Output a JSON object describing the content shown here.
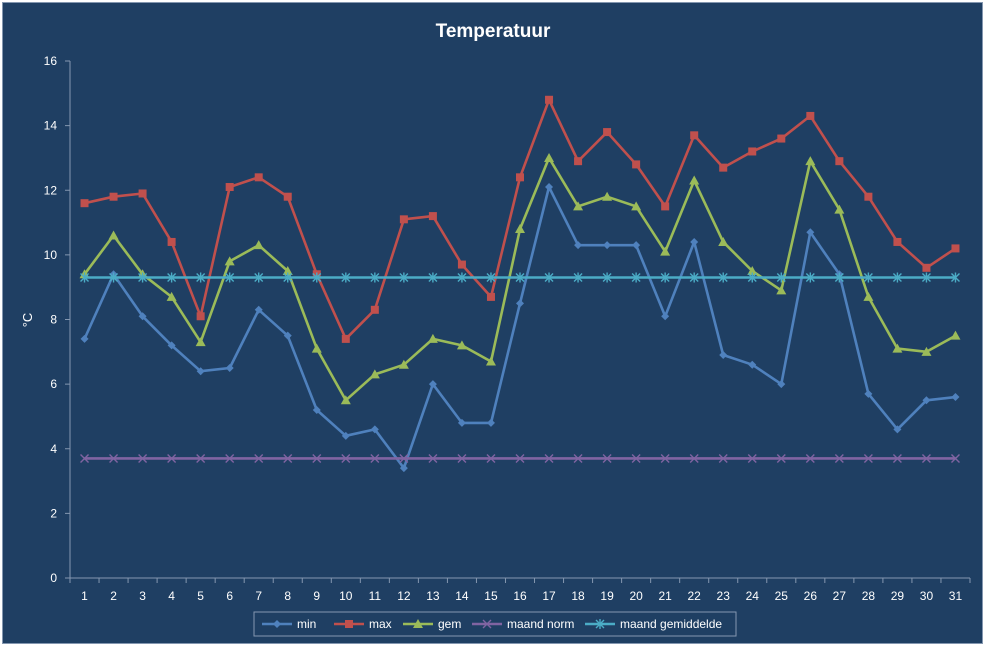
{
  "chart_data": {
    "type": "line",
    "title": "Temperatuur",
    "xlabel": "",
    "ylabel": "°C",
    "ylim": [
      0,
      16
    ],
    "yticks": [
      0,
      2,
      4,
      6,
      8,
      10,
      12,
      14,
      16
    ],
    "categories": [
      "1",
      "2",
      "3",
      "4",
      "5",
      "6",
      "7",
      "8",
      "9",
      "10",
      "11",
      "12",
      "13",
      "14",
      "15",
      "16",
      "17",
      "18",
      "19",
      "20",
      "21",
      "22",
      "23",
      "24",
      "25",
      "26",
      "27",
      "28",
      "29",
      "30",
      "31"
    ],
    "grid": false,
    "legend_position": "bottom",
    "series": [
      {
        "name": "min",
        "color": "#4f81bd",
        "marker": "diamond",
        "values": [
          7.4,
          9.4,
          8.1,
          7.2,
          6.4,
          6.5,
          8.3,
          7.5,
          5.2,
          4.4,
          4.6,
          3.4,
          6.0,
          4.8,
          4.8,
          8.5,
          12.1,
          10.3,
          10.3,
          10.3,
          8.1,
          10.4,
          6.9,
          6.6,
          6.0,
          10.7,
          9.4,
          5.7,
          4.6,
          5.5,
          5.6
        ]
      },
      {
        "name": "max",
        "color": "#c0504d",
        "marker": "square",
        "values": [
          11.6,
          11.8,
          11.9,
          10.4,
          8.1,
          12.1,
          12.4,
          11.8,
          9.4,
          7.4,
          8.3,
          11.1,
          11.2,
          9.7,
          8.7,
          12.4,
          14.8,
          12.9,
          13.8,
          12.8,
          11.5,
          13.7,
          12.7,
          13.2,
          13.6,
          14.3,
          12.9,
          11.8,
          10.4,
          9.6,
          10.2
        ]
      },
      {
        "name": "gem",
        "color": "#9bbb59",
        "marker": "triangle",
        "values": [
          9.4,
          10.6,
          9.4,
          8.7,
          7.3,
          9.8,
          10.3,
          9.5,
          7.1,
          5.5,
          6.3,
          6.6,
          7.4,
          7.2,
          6.7,
          10.8,
          13.0,
          11.5,
          11.8,
          11.5,
          10.1,
          12.3,
          10.4,
          9.5,
          8.9,
          12.9,
          11.4,
          8.7,
          7.1,
          7.0,
          7.5
        ]
      },
      {
        "name": "maand norm",
        "color": "#8064a2",
        "marker": "x",
        "values": [
          3.7,
          3.7,
          3.7,
          3.7,
          3.7,
          3.7,
          3.7,
          3.7,
          3.7,
          3.7,
          3.7,
          3.7,
          3.7,
          3.7,
          3.7,
          3.7,
          3.7,
          3.7,
          3.7,
          3.7,
          3.7,
          3.7,
          3.7,
          3.7,
          3.7,
          3.7,
          3.7,
          3.7,
          3.7,
          3.7,
          3.7
        ]
      },
      {
        "name": "maand gemiddelde",
        "color": "#4bacc6",
        "marker": "star",
        "values": [
          9.3,
          9.3,
          9.3,
          9.3,
          9.3,
          9.3,
          9.3,
          9.3,
          9.3,
          9.3,
          9.3,
          9.3,
          9.3,
          9.3,
          9.3,
          9.3,
          9.3,
          9.3,
          9.3,
          9.3,
          9.3,
          9.3,
          9.3,
          9.3,
          9.3,
          9.3,
          9.3,
          9.3,
          9.3,
          9.3,
          9.3
        ]
      }
    ]
  }
}
